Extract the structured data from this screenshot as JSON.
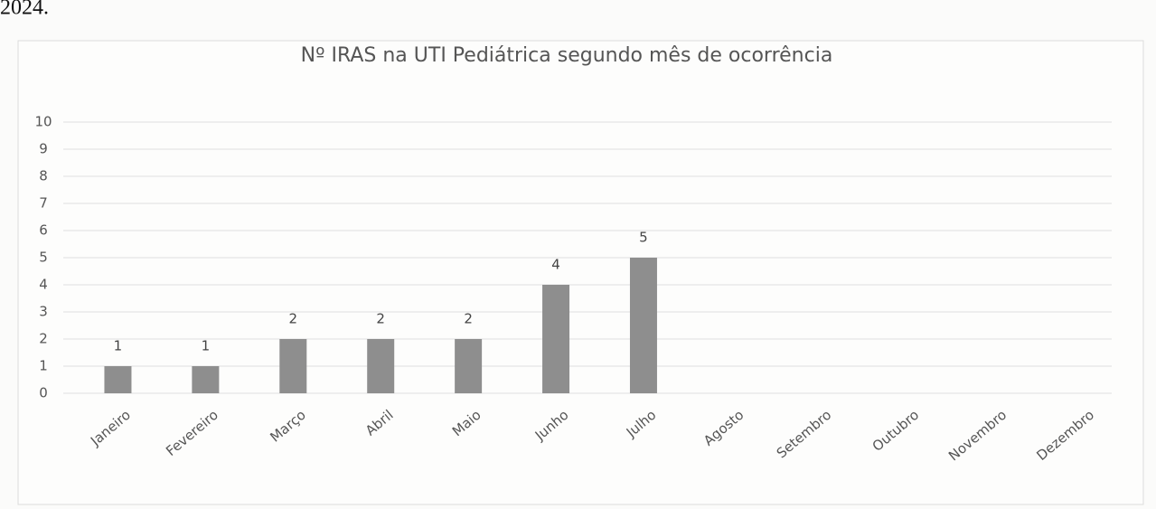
{
  "document_text": "2024.",
  "chart_data": {
    "type": "bar",
    "title": "Nº IRAS na UTI Pediátrica segundo mês de ocorrência",
    "categories": [
      "Janeiro",
      "Fevereiro",
      "Março",
      "Abril",
      "Maio",
      "Junho",
      "Julho",
      "Agosto",
      "Setembro",
      "Outubro",
      "Novembro",
      "Dezembro"
    ],
    "values": [
      1,
      1,
      2,
      2,
      2,
      4,
      5,
      null,
      null,
      null,
      null,
      null
    ],
    "color": "#8e8e8e",
    "ylim": [
      0,
      10
    ],
    "yticks": [
      0,
      1,
      2,
      3,
      4,
      5,
      6,
      7,
      8,
      9,
      10
    ],
    "grid": true
  }
}
